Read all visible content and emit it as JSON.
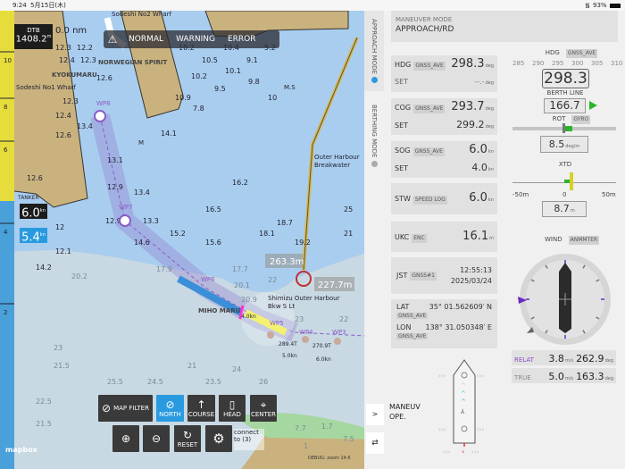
{
  "status": {
    "time": "9:24",
    "date": "5月15日(木)",
    "battery": "93%"
  },
  "alerts": {
    "normal": "NORMAL",
    "warning": "WARNING",
    "error": "ERROR",
    "icon": "warning-triangle-icon"
  },
  "dtb": {
    "label": "DTB",
    "value": "1408.2",
    "unit": "m"
  },
  "range_label": "0.0 nm",
  "speed_black": {
    "value": "6.0",
    "unit": "kn"
  },
  "speed_blue": {
    "value": "5.4",
    "unit": "kn"
  },
  "map_labels": {
    "wharf": "Sodeshi No1 Wharf",
    "wharf2": "Sodeshi No2 Wharf",
    "ship1": "NORWEGIAN SPIRIT",
    "ship2": "KYOKUMARU",
    "ship3": "MIHO MARU",
    "ship4": "TANKER",
    "breakwater": "Outer Harbour Breakwater",
    "light": "Shimizu Outer Harbour Bkw S Lt",
    "dist1": "263.3m",
    "dist2": "227.7m",
    "wp8": "WP8",
    "wp7": "WP7",
    "wp6": "WP6",
    "wp5": "WP5",
    "wp4": "WP4",
    "wp3": "WP3",
    "leg1": "4.0kn",
    "leg2": "5.0kn",
    "leg3": "6.0kn",
    "brg1": "289.4T",
    "brg2": "270.9T",
    "mapbox": "mapbox",
    "debug": "DEBUG: zoom 14.6",
    "connect": "connect to (3)",
    "mark": "M",
    "ms": "M.S"
  },
  "soundings": [
    "12.3",
    "12.2",
    "12.4",
    "12.3",
    "12.6",
    "12.3",
    "12.4",
    "13.4",
    "12.6",
    "10.2",
    "10.5",
    "10.4",
    "10.1",
    "9.1",
    "5.2",
    "9.8",
    "10",
    "9.5",
    "10.2",
    "10.9",
    "7.8",
    "13.1",
    "12.9",
    "13.4",
    "12.9",
    "13.3",
    "14.6",
    "15.2",
    "15.6",
    "14.1",
    "16.5",
    "16.2",
    "17.9",
    "17.7",
    "18.1",
    "18.7",
    "19.2",
    "20.1",
    "20.9",
    "22",
    "23",
    "22",
    "21",
    "25",
    "21.5",
    "24.5",
    "25.5",
    "23.5",
    "21",
    "24",
    "26",
    "22.5",
    "21.5",
    "23",
    "20.2",
    "14.2",
    "12",
    "12.1",
    "12.6",
    "7.7",
    "1.7",
    "7.5",
    "1"
  ],
  "ruler": [
    "10",
    "8",
    "6",
    "4",
    "2"
  ],
  "map_buttons": {
    "map_filter": "MAP FILTER",
    "north": "NORTH",
    "course": "COURSE",
    "head": "HEAD",
    "center": "CENTER",
    "reset": "RESET"
  },
  "side_tabs": {
    "approach": "APPROACH MODE",
    "berthing": "BERTHING MODE",
    "expand": ">",
    "swap": "⇄"
  },
  "panel": {
    "mode_label": "MANEUVER MODE",
    "mode_value": "APPROACH/RD",
    "hdg": {
      "label": "HDG",
      "src": "GNSS_AVE",
      "value": "298.3",
      "unit": "deg",
      "set_label": "SET",
      "set_value": "--.-",
      "set_unit": "deg"
    },
    "cog": {
      "label": "COG",
      "src": "GNSS_AVE",
      "value": "293.7",
      "unit": "deg",
      "set_label": "SET",
      "set_value": "299.2",
      "set_unit": "deg"
    },
    "sog": {
      "label": "SOG",
      "src": "GNSS_AVE",
      "value": "6.0",
      "unit": "kn",
      "set_label": "SET",
      "set_value": "4.0",
      "set_unit": "kn"
    },
    "stw": {
      "label": "STW",
      "src": "SPEED LOG",
      "value": "6.0",
      "unit": "kn"
    },
    "ukc": {
      "label": "UKC",
      "src": "ENC",
      "value": "16.1",
      "unit": "m"
    },
    "jst": {
      "label": "JST",
      "src": "GNSS#1",
      "time": "12:55:13",
      "date": "2025/03/24"
    },
    "lat": {
      "label": "LAT",
      "src": "GNSS_AVE",
      "value": "35° 01.562609′ N"
    },
    "lon": {
      "label": "LON",
      "src": "GNSS_AVE",
      "value": "138° 31.050348′ E"
    },
    "hdg_gauge": {
      "label": "HDG",
      "src": "GNSS_AVE",
      "value": "298.3",
      "ticks": [
        "285",
        "290",
        "295",
        "300",
        "305",
        "310"
      ]
    },
    "berth_line": {
      "label": "BERTH LINE",
      "value": "166.7"
    },
    "rot": {
      "label": "ROT",
      "src": "GYRO",
      "value": "8.5",
      "unit": "deg/m"
    },
    "xtd": {
      "label": "XTD",
      "value": "8.7",
      "unit": "m",
      "min": "-50m",
      "zero": "0",
      "max": "50m"
    },
    "wind": {
      "label": "WIND",
      "src": "ANMMTER",
      "relat_label": "RELAT",
      "relat_speed": "3.8",
      "relat_dir": "262.9",
      "true_label": "TRUE",
      "true_speed": "5.0",
      "true_dir": "163.3",
      "speed_unit": "m/s",
      "dir_unit": "deg"
    },
    "maneuv": "MANEUV\nOPE."
  },
  "colors": {
    "land": "#c9b27e",
    "shallow": "#a9cdee",
    "deep": "#c8d9e3",
    "accent": "#2a9ae0",
    "route": "#8a5cc8",
    "ruler_yellow": "#e6dc3c",
    "ruler_blue": "#4aa0d8"
  }
}
